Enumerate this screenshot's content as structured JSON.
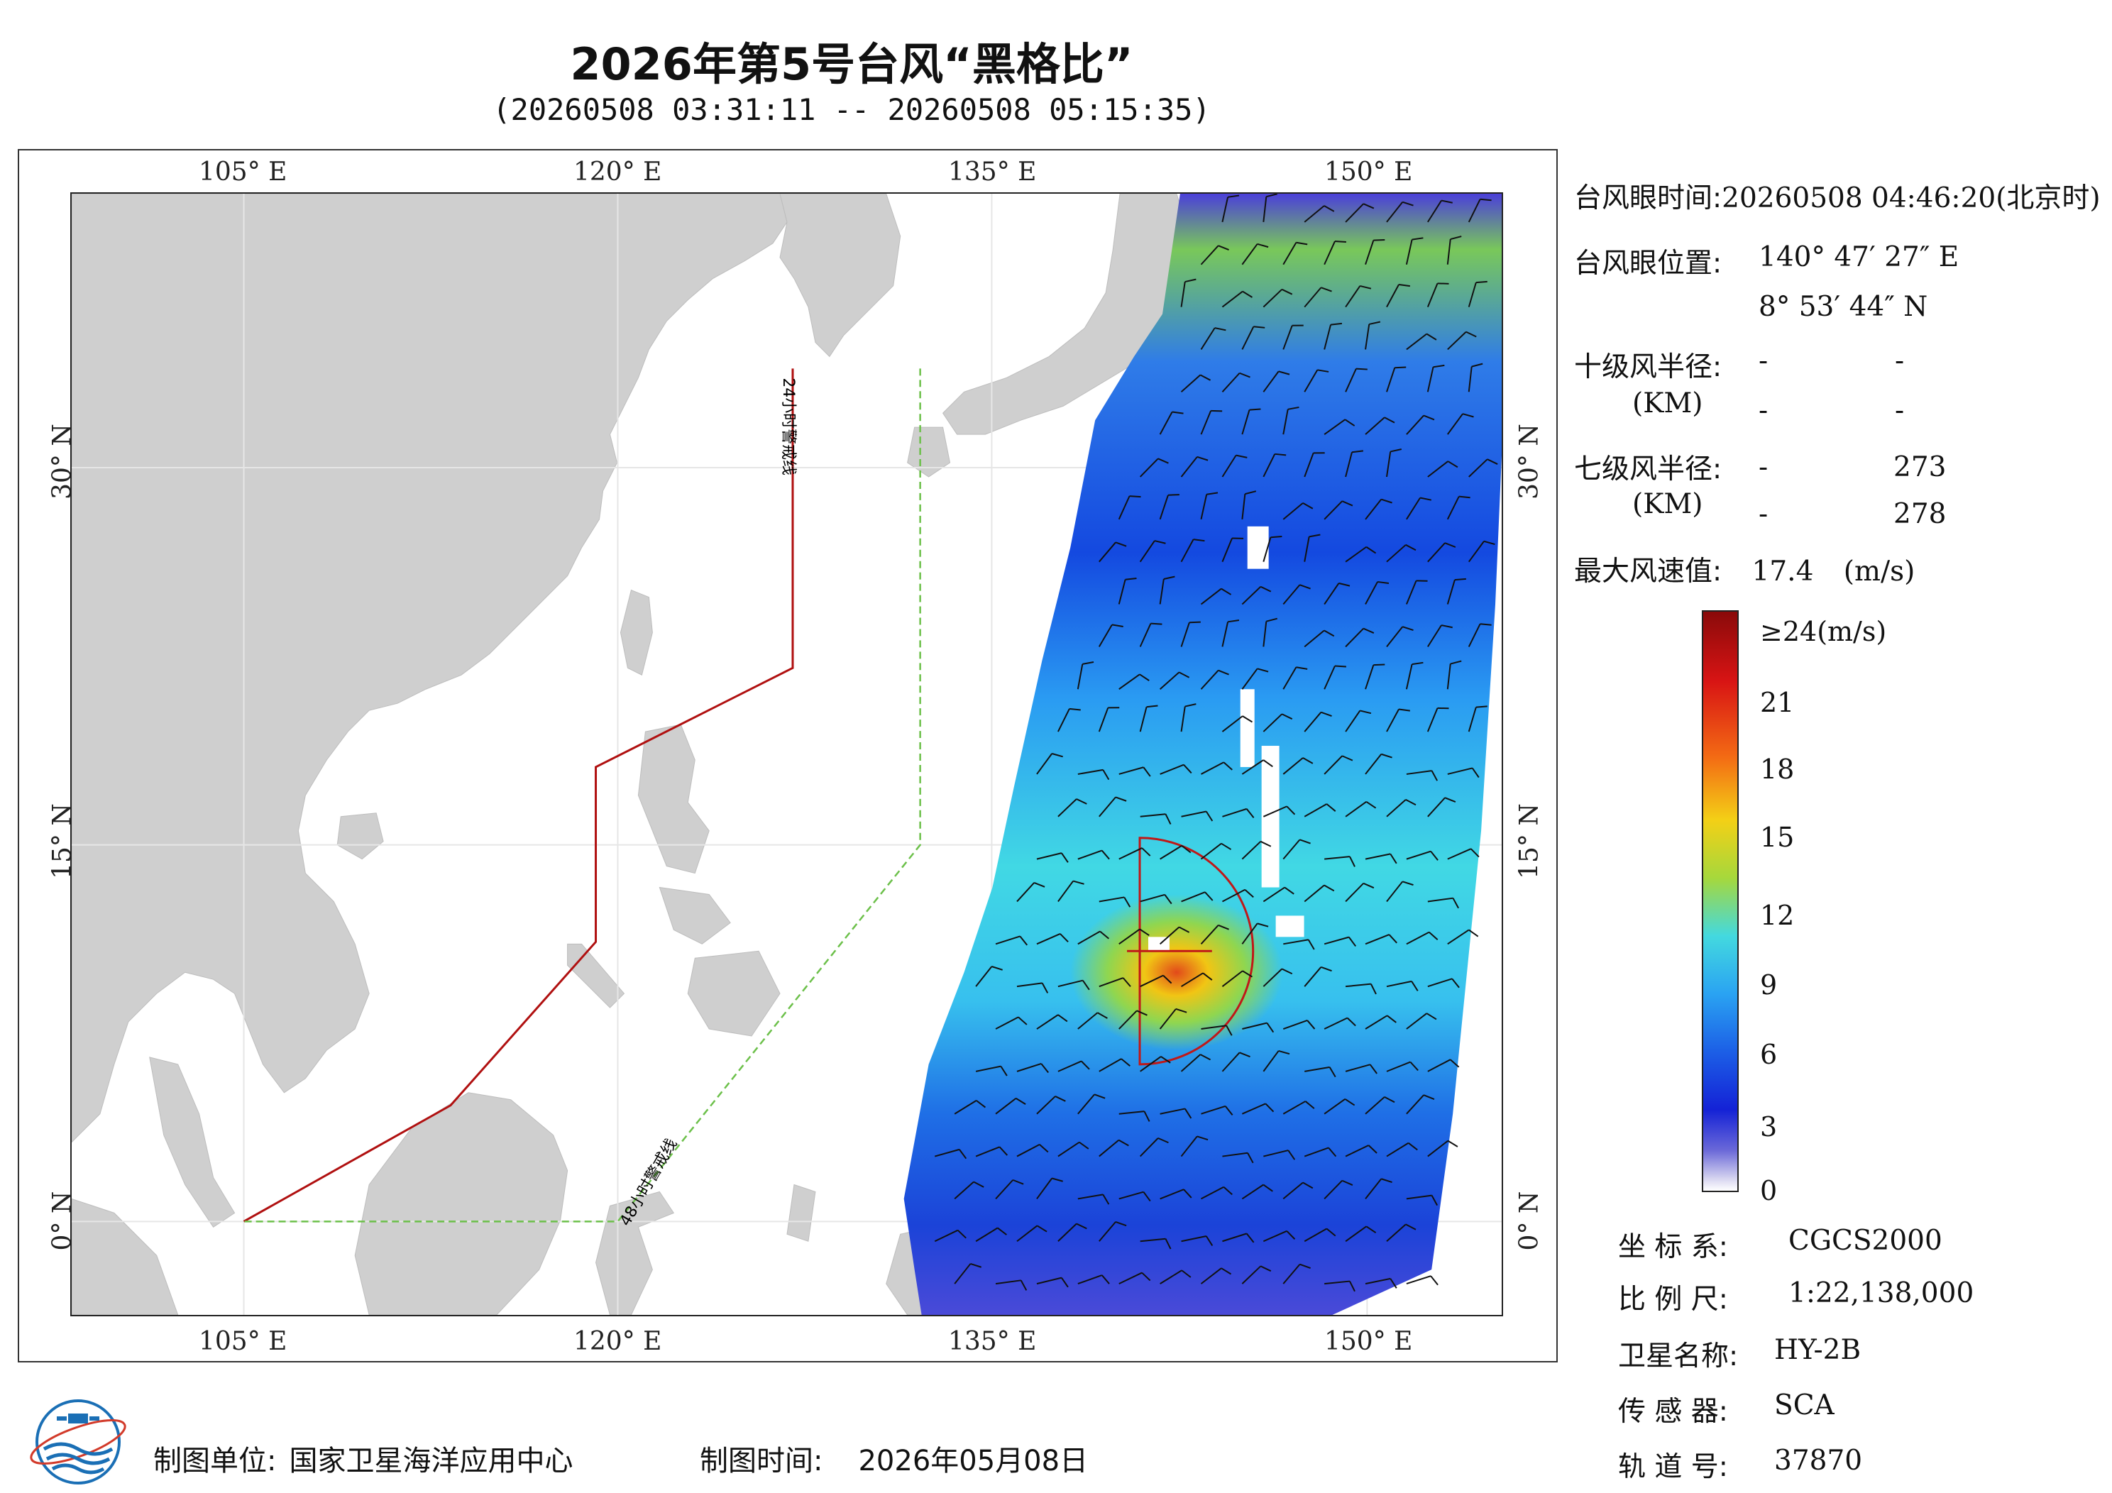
{
  "header": {
    "title": "2026年第5号台风“黑格比”",
    "subtitle": "(20260508 03:31:11 -- 20260508 05:15:35)"
  },
  "map": {
    "lon_ticks": [
      "105° E",
      "120° E",
      "135° E",
      "150° E"
    ],
    "lat_ticks": [
      "30° N",
      "15° N",
      "0° N"
    ],
    "warning_line_24h": "24小时警戒线",
    "warning_line_48h": "48小时警戒线",
    "colors": {
      "land": "#cfcfcf",
      "ocean": "#ffffff",
      "warning_24h": "#b01010",
      "warning_48h": "#6cc04a"
    }
  },
  "info": {
    "eye_time_label": "台风眼时间:",
    "eye_time_value": "20260508 04:46:20(北京时)",
    "eye_pos_label": "台风眼位置:",
    "eye_lon": "140° 47′ 27″ E",
    "eye_lat": "8° 53′ 44″ N",
    "r10_label": "十级风半径:",
    "r10_unit": "(KM)",
    "r10_values": [
      "-",
      "-",
      "-",
      "-"
    ],
    "r7_label": "七级风半径:",
    "r7_unit": "(KM)",
    "r7_values": [
      "-",
      "273",
      "-",
      "278"
    ],
    "max_wind_label": "最大风速值:",
    "max_wind_value": "17.4",
    "max_wind_unit": "(m/s)"
  },
  "colorbar": {
    "labels": [
      "≥24(m/s)",
      "21",
      "18",
      "15",
      "12",
      "9",
      "6",
      "3",
      "0"
    ]
  },
  "meta": {
    "crs_label": "坐 标 系:",
    "crs_value": "CGCS2000",
    "scale_label": "比 例 尺:",
    "scale_value": "1:22,138,000",
    "satellite_label": "卫星名称:",
    "satellite_value": "HY-2B",
    "sensor_label": "传 感 器:",
    "sensor_value": "SCA",
    "orbit_label": "轨 道 号:",
    "orbit_value": "37870"
  },
  "footer": {
    "unit_label": "制图单位:",
    "unit_value": "国家卫星海洋应用中心",
    "time_label": "制图时间:",
    "time_value": "2026年05月08日"
  }
}
